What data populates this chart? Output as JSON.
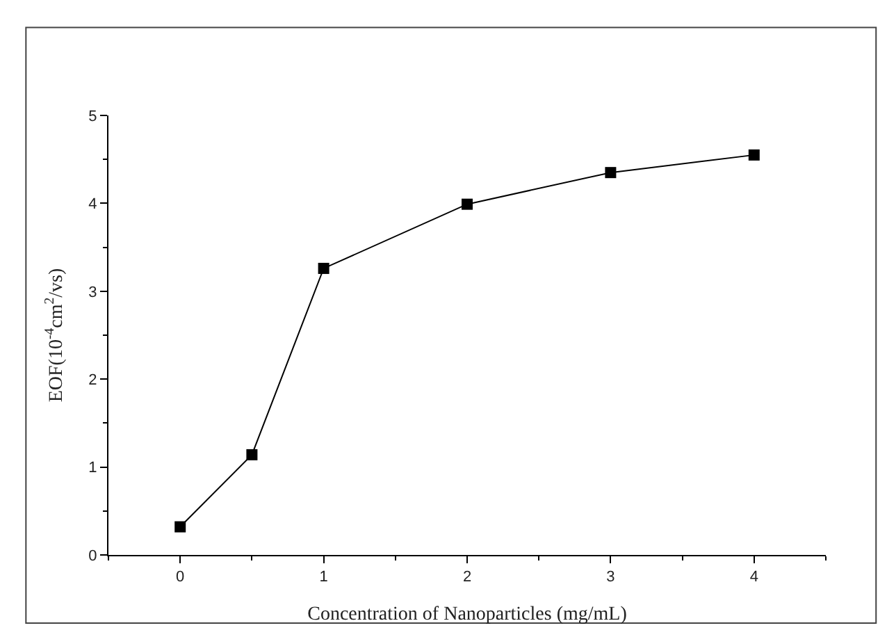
{
  "chart_data": {
    "type": "line",
    "xlabel": "Concentration of Nanoparticles (mg/mL)",
    "ylabel": "EOF(10$^{-4}$cm$^{2}$/vs)",
    "x": [
      0,
      0.5,
      1,
      2,
      3,
      4
    ],
    "series": [
      {
        "color": "#000000",
        "values": [
          0.32,
          1.14,
          3.26,
          3.99,
          4.35,
          4.55
        ]
      }
    ],
    "xlim": [
      -0.5,
      4.5
    ],
    "xticks": [
      0,
      1,
      2,
      3,
      4
    ],
    "ylim": [
      0,
      5
    ],
    "yticks": [
      0,
      1,
      2,
      3,
      4,
      5
    ],
    "marker": "square",
    "line_style": "solid"
  }
}
